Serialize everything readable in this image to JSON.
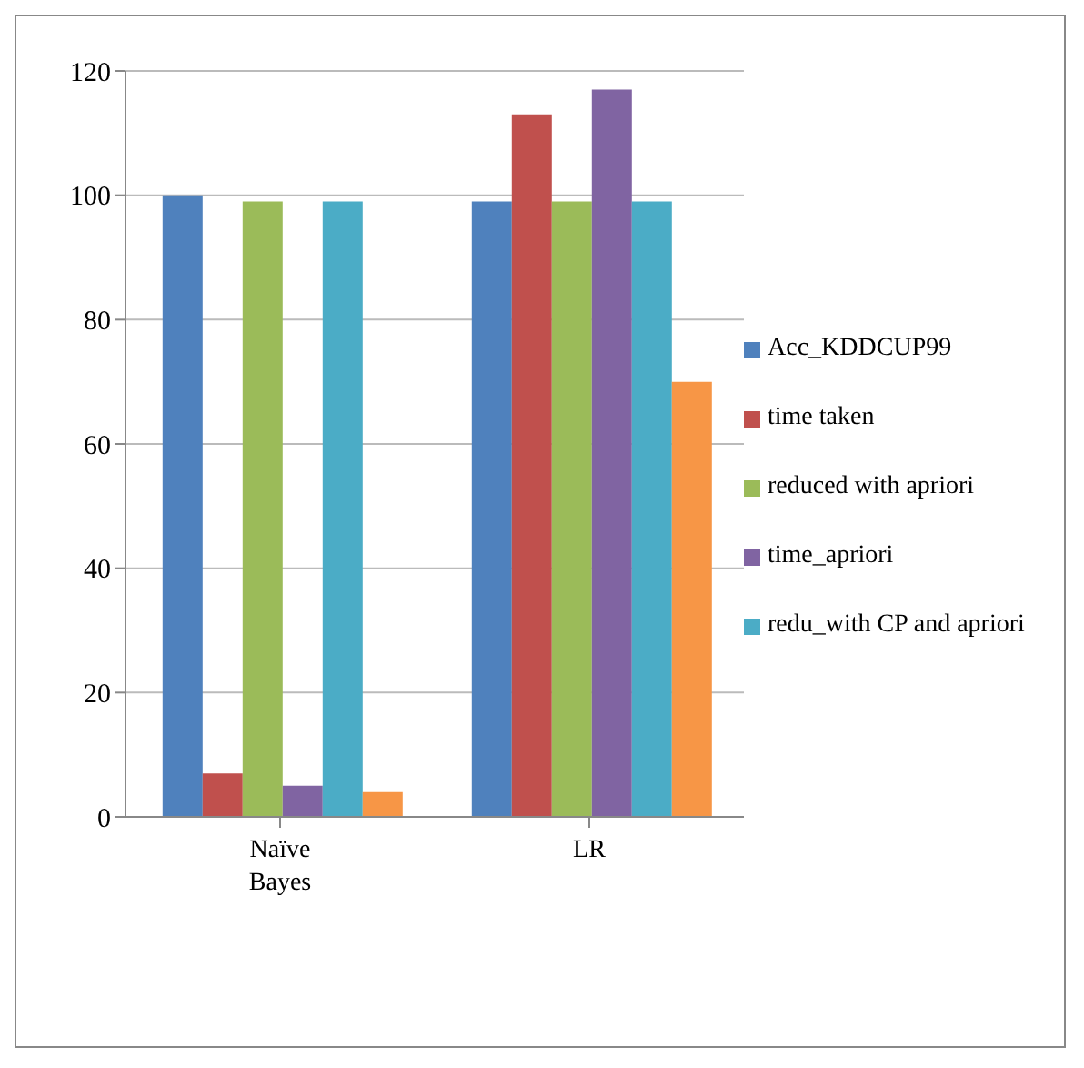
{
  "chart_data": {
    "type": "bar",
    "categories": [
      "Naïve Bayes",
      "LR"
    ],
    "series": [
      {
        "name": "Acc_KDDCUP99",
        "color": "#4f81bd",
        "values": [
          100,
          99
        ]
      },
      {
        "name": "time taken",
        "color": "#c0504d",
        "values": [
          7,
          113
        ]
      },
      {
        "name": "reduced with apriori",
        "color": "#9bbb59",
        "values": [
          99,
          99
        ]
      },
      {
        "name": "time_apriori",
        "color": "#8064a2",
        "values": [
          5,
          117
        ]
      },
      {
        "name": "redu_with CP and apriori",
        "color": "#4bacc6",
        "values": [
          99,
          99
        ]
      },
      {
        "color": "#f79646",
        "values": [
          4,
          70
        ]
      }
    ],
    "ylim": [
      0,
      120
    ],
    "yticks": [
      0,
      20,
      40,
      60,
      80,
      100,
      120
    ],
    "grid": "y",
    "legend": "right"
  }
}
